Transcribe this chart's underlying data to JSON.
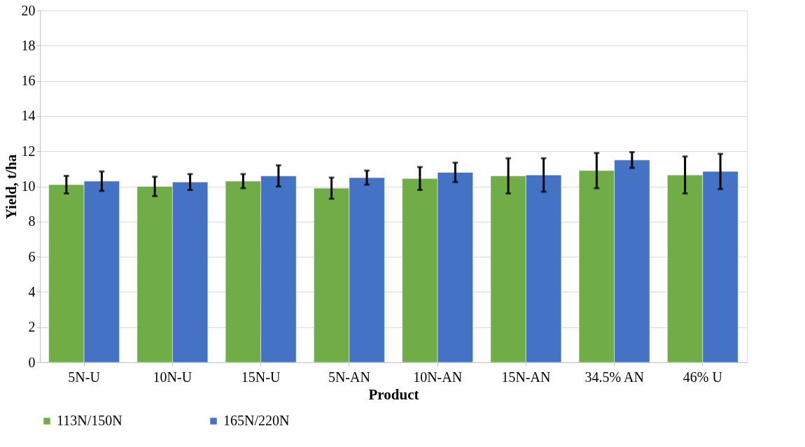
{
  "chart_data": {
    "type": "bar",
    "xlabel": "Product",
    "ylabel": "Yield, t/ha",
    "categories": [
      "5N-U",
      "10N-U",
      "15N-U",
      "5N-AN",
      "10N-AN",
      "15N-AN",
      "34.5% AN",
      "46% U"
    ],
    "series": [
      {
        "name": "113N/150N",
        "color": "#70ad47",
        "values": [
          10.1,
          10.0,
          10.3,
          9.9,
          10.45,
          10.6,
          10.9,
          10.65
        ],
        "errors": [
          0.5,
          0.55,
          0.4,
          0.6,
          0.65,
          1.0,
          1.0,
          1.05
        ]
      },
      {
        "name": "165N/220N",
        "color": "#4472c4",
        "values": [
          10.3,
          10.25,
          10.6,
          10.5,
          10.8,
          10.65,
          11.5,
          10.85
        ],
        "errors": [
          0.55,
          0.45,
          0.6,
          0.4,
          0.55,
          0.95,
          0.45,
          1.0
        ]
      }
    ],
    "ylim": [
      0,
      20
    ],
    "yticks": [
      0,
      2,
      4,
      6,
      8,
      10,
      12,
      14,
      16,
      18,
      20
    ],
    "grid": "y",
    "legend": "bottom"
  }
}
